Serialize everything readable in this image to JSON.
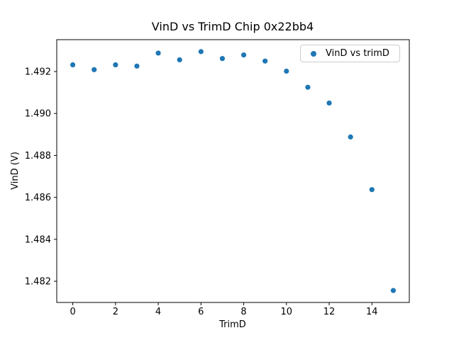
{
  "figure": {
    "background_color": "#ffffff",
    "text_color": "#000000",
    "spine_color": "#000000",
    "legend_border_color": "#cccccc"
  },
  "chart_data": {
    "type": "scatter",
    "title": "VinD vs TrimD Chip 0x22bb4",
    "xlabel": "TrimD",
    "ylabel": "VinD (V)",
    "legend": {
      "label": "VinD vs trimD",
      "position": "upper right"
    },
    "marker_color": "#1f77b4",
    "grid": false,
    "x": [
      0,
      1,
      2,
      3,
      4,
      5,
      6,
      7,
      8,
      9,
      10,
      11,
      12,
      13,
      14,
      15
    ],
    "y": [
      1.49232,
      1.49209,
      1.49232,
      1.49226,
      1.49288,
      1.49256,
      1.49295,
      1.49262,
      1.49279,
      1.4925,
      1.49202,
      1.49125,
      1.4905,
      1.48888,
      1.48637,
      1.48156
    ],
    "xlim": [
      -0.75,
      15.75
    ],
    "ylim": [
      1.48099,
      1.49352
    ],
    "xticks": {
      "values": [
        0,
        2,
        4,
        6,
        8,
        10,
        12,
        14
      ],
      "labels": [
        "0",
        "2",
        "4",
        "6",
        "8",
        "10",
        "12",
        "14"
      ]
    },
    "yticks": {
      "values": [
        1.482,
        1.484,
        1.486,
        1.488,
        1.49,
        1.492
      ],
      "labels": [
        "1.482",
        "1.484",
        "1.486",
        "1.488",
        "1.490",
        "1.492"
      ]
    }
  }
}
